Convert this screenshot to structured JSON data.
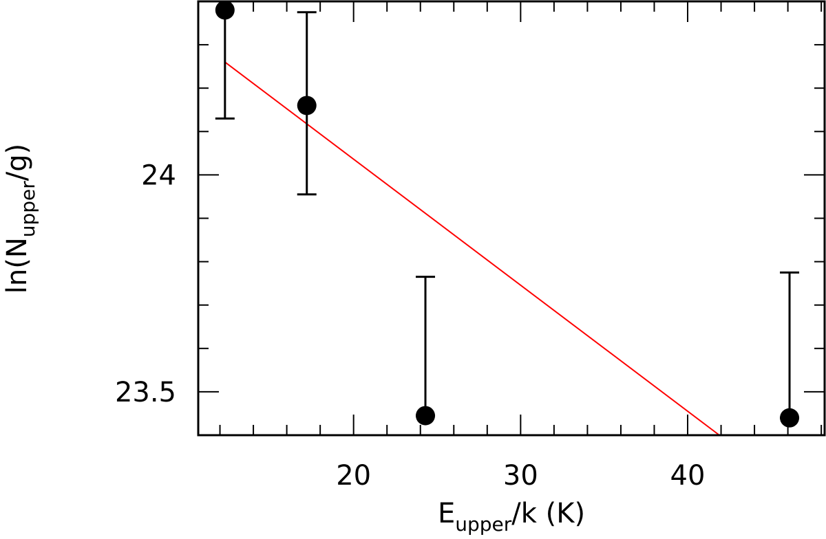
{
  "chart_data": {
    "type": "scatter",
    "xlabel": {
      "main": "E",
      "sub": "upper",
      "rest": "/k (K)"
    },
    "ylabel": {
      "pre": "ln(N",
      "sub": "upper",
      "post": "/g)"
    },
    "xlim": [
      10.7,
      48.2
    ],
    "ylim": [
      23.4,
      24.4
    ],
    "x_major_ticks": [
      20,
      30,
      40
    ],
    "x_minor_step": 2,
    "y_major_ticks": [
      24,
      23.5
    ],
    "y_minor_step": 0.1,
    "grid": false,
    "series": [
      {
        "points": [
          {
            "x": 12.3,
            "y": 24.38,
            "err_low": 24.13,
            "err_high": 24.42
          },
          {
            "x": 17.2,
            "y": 24.16,
            "err_low": 23.955,
            "err_high": 24.375
          },
          {
            "x": 24.3,
            "y": 23.445,
            "err_low": 23.445,
            "err_high": 23.765
          },
          {
            "x": 46.1,
            "y": 23.44,
            "err_low": 23.44,
            "err_high": 23.775
          }
        ]
      }
    ],
    "fit_line": {
      "color": "#ff0000",
      "x": [
        12.3,
        41.9
      ],
      "y": [
        24.26,
        23.4
      ]
    }
  }
}
